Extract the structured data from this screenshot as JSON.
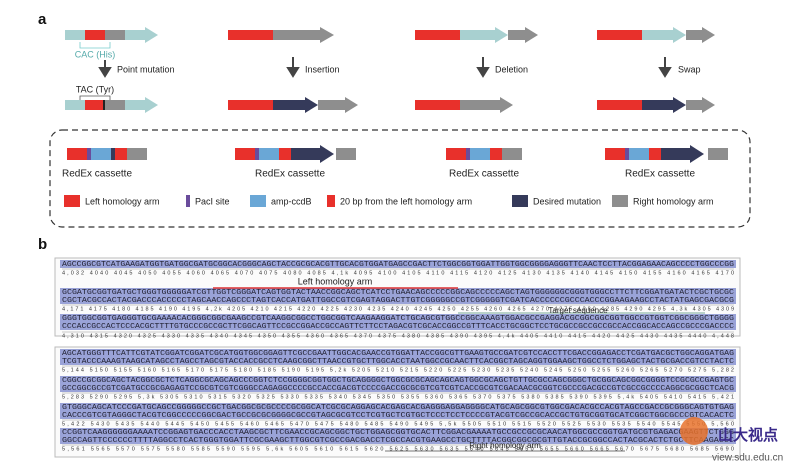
{
  "panel_a": {
    "label": "a",
    "operations": [
      "Point mutation",
      "Insertion",
      "Deletion",
      "Swap"
    ],
    "codon_before": "CAC (His)",
    "codon_after": "TAC (Tyr)",
    "cassette_label": "RedEx cassette",
    "legend": [
      "Left homology arm",
      "PacI site",
      "amp-ccdB",
      "20 bp from the left homology arm",
      "Desired mutation",
      "Right homology arm"
    ]
  },
  "panel_b": {
    "label": "b",
    "blocks": [
      {
        "rows": [
          {
            "seq": "AGCCGGCGTCATGAAGATGGTGATGGCGATGCGGCACGGGCAGCTACCGCGCACGTTGCACGTGGATGAGCCGACTTCTGGCGGTGGATTGGTGGCGGGGAGGGTTCAACTCCTTACGGAGAACAGCCCCTGGCCCGG",
            "comp": "",
            "ruler": "4,032  4040  4045  4050  4055  4060  4065  4070  4075  4080  4085  4,1k  4095  4100  4105  4110  4115  4120  4125  4130  4135  4140  4145  4150  4155  4160  4165  4170"
          },
          {
            "seq": "GCGATGCGGTGATGCTGGGTGGGGGATCGTTGGTCGGGATCAGTGGTACTAACCGGCAGCTCATCCTGAACAGCCCCCGGCAGCCCCCAGCTAGTGGGGGGCGGGTGGGCCTTCTTCGGATGATACTCGCTGCGC",
            "comp": "CGCTACGCCACTACGACCCACCCCCTAGCAACCAGCCCTAGTCACCATGATTGGCCGTCGAGTAGGACTTGTCGGGGGCCGTCGGGGGTCGATCACCCCCCGCCCACCCGGAAGAAGCCTACTATGAGCGACGCG",
            "ruler": "4,171  4175  4180  4185  4190  4195  4,2k  4205  4210  4215  4220  4225  4230  4235  4240  4245  4250  4255  4260  4265  4270  4275  4280  4285  4290  4295  4,3k  4305  4309"
          },
          {
            "seq": "GGGTGGCGGTGAGGGTGCGAAAACACGGGCGGCGAAGCCGTCAAGGCGGCCTGGCGGTCAAGAAGGATCTGCAGCGTGGCCGGCAAAGTGGACGCCGAGGACGCGGCGGCGGTGGCCGTGGTCGGCGGGCTGGGG",
            "comp": "CCCACCGCCACTCCCACGCTTTTGTGCCCGCCGCTTCGGCAGTTCCGCCGGACCGCCAGTTCTTCCTAGACGTCGCACCGGCCGTTTCACCTGCGGCTCCTGCGCCGCCGCCGCCACCGGCACCAGCCGCCCGACCCC",
            "ruler": "4,310  4315  4320  4325  4330  4335  4340  4345  4350  4355  4360  4365  4370  4375  4380  4385  4390  4395  4,4k  4405  4410  4415  4420  4425  4430  4435  4440  4,448"
          }
        ]
      },
      {
        "rows": [
          {
            "seq": "AGCATGGGTTTCATTCGTATCGGATCGGATCGCATGGTGGCGGAGTTCGCCGAATTGGCACGAACCGTGGATTACCGGCGTTGAAGTGCCGATCGTCCACCTTCGACCGGAGACCTCGATGACGCTGGCAGGATGAG",
            "comp": "TCGTACCCAAAGTAAGCATAGCCTAGCCTAGCGTACCACCGCCTCAAGCGGCTTAACCGTGCTTGGCACCTAATGGCCGCAACTTCACGGCTAGCAGGTGGAAGCTGGCCTCTGGAGCTACTGCGACCGTCCTACTC",
            "ruler": "5,144  5150  5155  5160  5165  5170  5175  5180  5185  5190  5195  5,2k  5205  5210  5215  5220  5225  5230  5235  5240  5245  5250  5255  5260  5265  5270  5275  5,282"
          },
          {
            "seq": "CGGCCGCGGCAGCTACGGCGCTCTCAGGCGCAGCAGCCCGGTCTCCGGGGCGGTGGCTGCAGGGGCTGGCGCGCAGCAGCAGTGGCGCAGCTGTTGCGCCAGCGGGCTGCGGCAGCGGCGGGGTCCGCGCCGAGTGC",
            "comp": "GCCGGCGCCGTCGATGCCGCGAGAGTCCGCGTCGTCGGGCCAGAGGCCCCGCCACCGACGTCCCCGACCGCGCGTCGTCGTCACCGCGTCGACAACGCGGTCGCCCGACGCCGTCGCCGCCCCAGGCGCGGCTCACG",
            "ruler": "5,283  5290  5295  5,3k  5305  5310  5315  5320  5325  5330  5335  5340  5345  5350  5355  5360  5365  5370  5375  5380  5385  5390  5395  5,4k  5405  5410  5415  5,421"
          },
          {
            "seq": "GTGGGCAGCATCCCGATGCAGCCGGGGGCCGCTGACGGCGCGCCCCGCGGCATCGCGCAGGAGCACGAGCACGAGGGAGGAGGGGCATGCAGCGGCGTGGCGACACGCCACGTAGCCGACCGCGGGCAGTGTGAG",
            "comp": "CACCCGTCGTAGGGCTACGTCGGCCCCCGGCGACTGCCGCGCGGGGCGCCGTAGCGCGTCCTCGTGCTCGTGCTCCCTCCTCCCCGTACGTCGCCGCACCGCTGTGCGGTGCATCGGCTGGCGCCCGTCACACTC",
            "ruler": "5,422  5430  5435  5440  5445  5450  5455  5460  5465  5470  5475  5480  5485  5490  5495  5,5k  5505  5510  5515  5520  5525  5530  5535  5540  5545  5550  5,560"
          },
          {
            "seq": "CCGGTCAAGGGGGGAAAATCCGGAGTGACCCACCTAAGCGCTTCGAACCGCAGCGGCTGCTGGAGCGGTGCACTTCGGACGAAAATGCCGCCGCGCAACATGGCGCCGGTGATGCGTGAGACGAAGTTCTGGG",
            "comp": "GGCCAGTTCCCCCCTTTTAGGCCTCACTGGGTGGATTCGCGAAGCTTGGCGTCGCCGACGACCTCGCCACGTGAAGCCTGCTTTTACGGCGGCGCGTTGTACCGCGGCCACTACGCACTCTGCTTCAAGACCC",
            "ruler": "5,561 5565  5570  5575  5580  5585  5590  5595  5,6k  5605  5610  5615  5620  5625  5630  5635  5640  5645  5650  5655  5660  5665  5670  5675  5680  5685  5690"
          }
        ]
      }
    ],
    "annotations": [
      "Left homology arm",
      "Target sequence",
      "Right homology arm"
    ]
  },
  "watermark": {
    "title": "山大视点",
    "url": "view.sdu.edu.cn"
  }
}
